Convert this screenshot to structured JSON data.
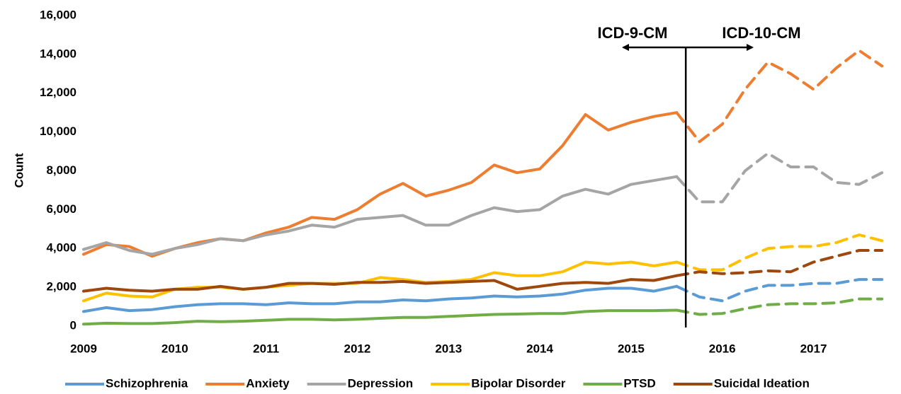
{
  "chart_data": {
    "type": "line",
    "y_label": "Count",
    "annotations": {
      "left": "ICD-9-CM",
      "right": "ICD-10-CM"
    },
    "divider_x": 2015.6,
    "dashed_from": 2015.5,
    "x": [
      2009,
      2009.25,
      2009.5,
      2009.75,
      2010,
      2010.25,
      2010.5,
      2010.75,
      2011,
      2011.25,
      2011.5,
      2011.75,
      2012,
      2012.25,
      2012.5,
      2012.75,
      2013,
      2013.25,
      2013.5,
      2013.75,
      2014,
      2014.25,
      2014.5,
      2014.75,
      2015,
      2015.25,
      2015.5,
      2015.75,
      2016,
      2016.25,
      2016.5,
      2016.75,
      2017,
      2017.25,
      2017.5,
      2017.75
    ],
    "xlim": [
      2009,
      2017.85
    ],
    "xticks": [
      2009,
      2010,
      2011,
      2012,
      2013,
      2014,
      2015,
      2016,
      2017
    ],
    "ylim": [
      0,
      16000
    ],
    "yticks": [
      0,
      {
        "value": 2000,
        "label": "2,000"
      },
      {
        "value": 4000,
        "label": "4,000"
      },
      {
        "value": 6000,
        "label": "6,000"
      },
      {
        "value": 8000,
        "label": "8,000"
      },
      {
        "value": 10000,
        "label": "10,000"
      },
      {
        "value": 12000,
        "label": "12,000"
      },
      {
        "value": 14000,
        "label": "14,000"
      },
      {
        "value": 16000,
        "label": "16,000"
      }
    ],
    "series": [
      {
        "name": "Schizophrenia",
        "color": "#5b9bd5",
        "values": [
          750,
          950,
          800,
          850,
          1000,
          1100,
          1150,
          1150,
          1100,
          1200,
          1150,
          1150,
          1250,
          1250,
          1350,
          1300,
          1400,
          1450,
          1550,
          1500,
          1550,
          1650,
          1850,
          1950,
          1950,
          1800,
          2050,
          1500,
          1300,
          1800,
          2100,
          2100,
          2200,
          2200,
          2400,
          2400
        ]
      },
      {
        "name": "Anxiety",
        "color": "#ed7d31",
        "values": [
          3700,
          4200,
          4100,
          3600,
          4000,
          4300,
          4500,
          4400,
          4800,
          5100,
          5600,
          5500,
          6000,
          6800,
          7350,
          6700,
          7000,
          7400,
          8300,
          7900,
          8100,
          9300,
          10900,
          10100,
          10500,
          10800,
          11000,
          9500,
          10400,
          12200,
          13600,
          13000,
          12200,
          13300,
          14200,
          13400
        ]
      },
      {
        "name": "Depression",
        "color": "#a5a5a5",
        "values": [
          3950,
          4300,
          3900,
          3700,
          4000,
          4200,
          4500,
          4400,
          4700,
          4900,
          5200,
          5100,
          5500,
          5600,
          5700,
          5200,
          5200,
          5700,
          6100,
          5900,
          6000,
          6700,
          7050,
          6800,
          7300,
          7500,
          7700,
          6400,
          6400,
          8000,
          8900,
          8200,
          8200,
          7400,
          7300,
          7900
        ]
      },
      {
        "name": "Bipolar Disorder",
        "color": "#ffc000",
        "values": [
          1300,
          1700,
          1550,
          1500,
          1900,
          2000,
          2000,
          1900,
          2000,
          2100,
          2200,
          2200,
          2200,
          2500,
          2400,
          2250,
          2300,
          2400,
          2750,
          2600,
          2600,
          2800,
          3300,
          3200,
          3300,
          3100,
          3300,
          2900,
          2900,
          3500,
          4000,
          4100,
          4100,
          4300,
          4700,
          4400
        ]
      },
      {
        "name": "PTSD",
        "color": "#70ad47",
        "values": [
          100,
          150,
          130,
          130,
          180,
          250,
          230,
          250,
          300,
          350,
          350,
          320,
          350,
          400,
          450,
          450,
          500,
          550,
          600,
          620,
          650,
          650,
          750,
          800,
          800,
          800,
          820,
          600,
          650,
          900,
          1100,
          1150,
          1150,
          1200,
          1400,
          1400
        ]
      },
      {
        "name": "Suicidal Ideation",
        "color": "#9e480e",
        "values": [
          1800,
          1950,
          1850,
          1800,
          1900,
          1900,
          2050,
          1900,
          2000,
          2200,
          2200,
          2150,
          2250,
          2250,
          2300,
          2200,
          2250,
          2300,
          2350,
          1900,
          2050,
          2200,
          2250,
          2200,
          2400,
          2350,
          2600,
          2800,
          2700,
          2750,
          2850,
          2800,
          3300,
          3600,
          3900,
          3900
        ]
      }
    ]
  }
}
